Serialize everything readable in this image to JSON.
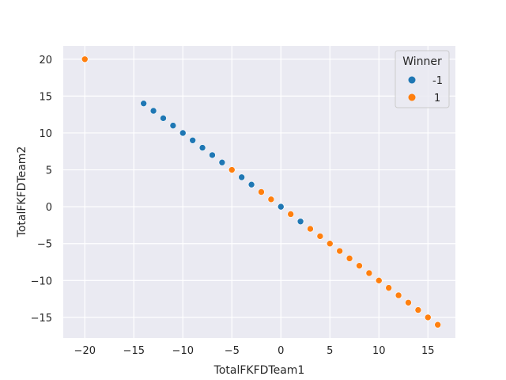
{
  "chart_data": {
    "type": "scatter",
    "title": "",
    "xlabel": "TotalFKFDTeam1",
    "ylabel": "TotalFKFDTeam2",
    "xlim": [
      -22.2,
      17.8
    ],
    "ylim": [
      -17.8,
      21.8
    ],
    "xticks": [
      -20,
      -15,
      -10,
      -5,
      0,
      5,
      10,
      15
    ],
    "yticks": [
      -15,
      -10,
      -5,
      0,
      5,
      10,
      15,
      20
    ],
    "xtick_labels": [
      "−20",
      "−15",
      "−10",
      "−5",
      "0",
      "5",
      "10",
      "15"
    ],
    "ytick_labels": [
      "−15",
      "−10",
      "−5",
      "0",
      "5",
      "10",
      "15",
      "20"
    ],
    "grid": true,
    "background": "#EAEAF2",
    "legend": {
      "title": "Winner",
      "placement": "top-right",
      "entries": [
        {
          "label": "-1",
          "color": "#1F77B4"
        },
        {
          "label": "1",
          "color": "#FF7F0E"
        }
      ]
    },
    "series": [
      {
        "name": "-1",
        "color": "#1F77B4",
        "points": [
          [
            -14,
            14
          ],
          [
            -13,
            13
          ],
          [
            -12,
            12
          ],
          [
            -11,
            11
          ],
          [
            -10,
            10
          ],
          [
            -9,
            9
          ],
          [
            -8,
            8
          ],
          [
            -7,
            7
          ],
          [
            -6,
            6
          ],
          [
            -4,
            4
          ],
          [
            -3,
            3
          ],
          [
            0,
            0
          ],
          [
            2,
            -2
          ]
        ]
      },
      {
        "name": "1",
        "color": "#FF7F0E",
        "points": [
          [
            -20,
            20
          ],
          [
            -5,
            5
          ],
          [
            -2,
            2
          ],
          [
            -1,
            1
          ],
          [
            1,
            -1
          ],
          [
            3,
            -3
          ],
          [
            4,
            -4
          ],
          [
            5,
            -5
          ],
          [
            6,
            -6
          ],
          [
            7,
            -7
          ],
          [
            8,
            -8
          ],
          [
            9,
            -9
          ],
          [
            10,
            -10
          ],
          [
            11,
            -11
          ],
          [
            12,
            -12
          ],
          [
            13,
            -13
          ],
          [
            14,
            -14
          ],
          [
            15,
            -15
          ],
          [
            16,
            -16
          ]
        ]
      }
    ]
  }
}
